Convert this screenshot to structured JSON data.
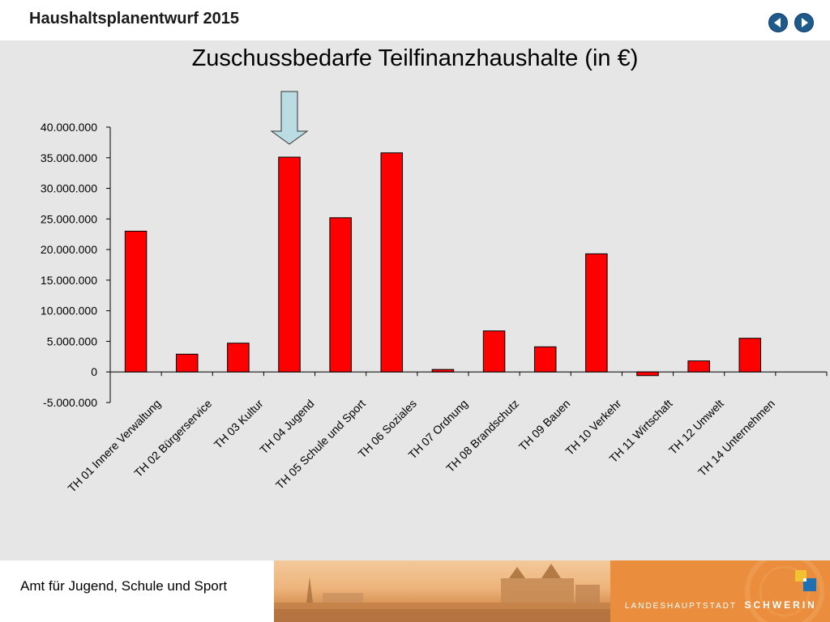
{
  "header": {
    "title": "Haushaltsplanentwurf 2015"
  },
  "nav": {
    "prev_icon": "arrow-left-circle-icon",
    "next_icon": "arrow-right-circle-icon",
    "color": "#1f5a8c"
  },
  "footer": {
    "department": "Amt für Jugend, Schule und Sport",
    "city_prefix": "LANDESHAUPTSTADT",
    "city_name": "SCHWERIN"
  },
  "chart_data": {
    "type": "bar",
    "title": "Zuschussbedarfe Teilfinanzhaushalte (in €)",
    "categories": [
      "TH 01 Innere Verwaltung",
      "TH 02 Bürgerservice",
      "TH 03 Kultur",
      "TH 04 Jugend",
      "TH 05 Schule und Sport",
      "TH 06 Soziales",
      "TH 07 Ordnung",
      "TH 08 Brandschutz",
      "TH 09 Bauen",
      "TH 10 Verkehr",
      "TH 11 Wirtschaft",
      "TH 12 Umwelt",
      "TH 14 Unternehmen"
    ],
    "values": [
      23000000,
      2900000,
      4700000,
      35100000,
      25200000,
      35800000,
      400000,
      6700000,
      4100000,
      19300000,
      -600000,
      1800000,
      5500000
    ],
    "ylim": [
      -5000000,
      40000000
    ],
    "yticks": [
      -5000000,
      0,
      5000000,
      10000000,
      15000000,
      20000000,
      25000000,
      30000000,
      35000000,
      40000000
    ],
    "ytick_labels": [
      "-5.000.000",
      "0",
      "5.000.000",
      "10.000.000",
      "15.000.000",
      "20.000.000",
      "25.000.000",
      "30.000.000",
      "35.000.000",
      "40.000.000"
    ],
    "bar_color": "#ff0000",
    "highlight_category": "TH 04 Jugend",
    "highlight_arrow_color": "#b9dde3",
    "grid": false,
    "legend": "none"
  }
}
